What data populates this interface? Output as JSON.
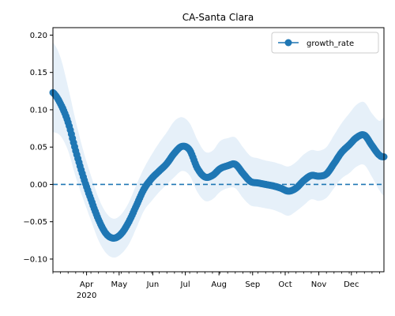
{
  "chart_data": {
    "type": "line",
    "title": "CA-Santa Clara",
    "xlabel": "",
    "ylabel": "",
    "x_axis": {
      "start": "2020-03-01",
      "end": "2020-12-31",
      "major_ticks": [
        {
          "date": "2020-04-01",
          "label": "Apr",
          "sublabel": "2020"
        },
        {
          "date": "2020-05-01",
          "label": "May",
          "sublabel": ""
        },
        {
          "date": "2020-06-01",
          "label": "Jun",
          "sublabel": ""
        },
        {
          "date": "2020-07-01",
          "label": "Jul",
          "sublabel": ""
        },
        {
          "date": "2020-08-01",
          "label": "Aug",
          "sublabel": ""
        },
        {
          "date": "2020-09-01",
          "label": "Sep",
          "sublabel": ""
        },
        {
          "date": "2020-10-01",
          "label": "Oct",
          "sublabel": ""
        },
        {
          "date": "2020-11-01",
          "label": "Nov",
          "sublabel": ""
        },
        {
          "date": "2020-12-01",
          "label": "Dec",
          "sublabel": ""
        }
      ],
      "minor_ticks": "weekly"
    },
    "ylim": [
      -0.117,
      0.21
    ],
    "yticks": [
      -0.1,
      -0.05,
      0.0,
      0.05,
      0.1,
      0.15,
      0.2
    ],
    "ytick_labels": [
      "−0.10",
      "−0.05",
      "0.00",
      "0.05",
      "0.10",
      "0.15",
      "0.20"
    ],
    "reference_line": {
      "y": 0.0,
      "style": "dashed"
    },
    "legend": {
      "position": "top-right",
      "entries": [
        "growth_rate"
      ]
    },
    "series": [
      {
        "name": "growth_rate",
        "color": "#1f77b4",
        "band_color": "#deebf7",
        "points": [
          {
            "x": "2020-03-01",
            "y": 0.123,
            "lo": 0.07,
            "hi": 0.19
          },
          {
            "x": "2020-03-08",
            "y": 0.108,
            "lo": 0.065,
            "hi": 0.17
          },
          {
            "x": "2020-03-15",
            "y": 0.083,
            "lo": 0.045,
            "hi": 0.13
          },
          {
            "x": "2020-03-22",
            "y": 0.045,
            "lo": 0.01,
            "hi": 0.085
          },
          {
            "x": "2020-03-29",
            "y": 0.01,
            "lo": -0.02,
            "hi": 0.045
          },
          {
            "x": "2020-04-05",
            "y": -0.02,
            "lo": -0.048,
            "hi": 0.012
          },
          {
            "x": "2020-04-12",
            "y": -0.047,
            "lo": -0.075,
            "hi": -0.018
          },
          {
            "x": "2020-04-19",
            "y": -0.066,
            "lo": -0.092,
            "hi": -0.038
          },
          {
            "x": "2020-04-26",
            "y": -0.072,
            "lo": -0.098,
            "hi": -0.046
          },
          {
            "x": "2020-05-03",
            "y": -0.066,
            "lo": -0.093,
            "hi": -0.04
          },
          {
            "x": "2020-05-10",
            "y": -0.05,
            "lo": -0.08,
            "hi": -0.024
          },
          {
            "x": "2020-05-17",
            "y": -0.028,
            "lo": -0.058,
            "hi": 0.0
          },
          {
            "x": "2020-05-24",
            "y": -0.006,
            "lo": -0.035,
            "hi": 0.022
          },
          {
            "x": "2020-05-31",
            "y": 0.008,
            "lo": -0.022,
            "hi": 0.04
          },
          {
            "x": "2020-06-07",
            "y": 0.018,
            "lo": -0.01,
            "hi": 0.056
          },
          {
            "x": "2020-06-14",
            "y": 0.028,
            "lo": 0.0,
            "hi": 0.07
          },
          {
            "x": "2020-06-21",
            "y": 0.042,
            "lo": 0.01,
            "hi": 0.085
          },
          {
            "x": "2020-06-28",
            "y": 0.051,
            "lo": 0.018,
            "hi": 0.09
          },
          {
            "x": "2020-07-05",
            "y": 0.046,
            "lo": 0.012,
            "hi": 0.082
          },
          {
            "x": "2020-07-12",
            "y": 0.022,
            "lo": -0.01,
            "hi": 0.06
          },
          {
            "x": "2020-07-19",
            "y": 0.01,
            "lo": -0.022,
            "hi": 0.044
          },
          {
            "x": "2020-07-26",
            "y": 0.012,
            "lo": -0.02,
            "hi": 0.045
          },
          {
            "x": "2020-08-02",
            "y": 0.021,
            "lo": -0.01,
            "hi": 0.058
          },
          {
            "x": "2020-08-09",
            "y": 0.025,
            "lo": -0.005,
            "hi": 0.062
          },
          {
            "x": "2020-08-16",
            "y": 0.027,
            "lo": -0.005,
            "hi": 0.063
          },
          {
            "x": "2020-08-23",
            "y": 0.015,
            "lo": -0.018,
            "hi": 0.05
          },
          {
            "x": "2020-08-30",
            "y": 0.004,
            "lo": -0.028,
            "hi": 0.038
          },
          {
            "x": "2020-09-06",
            "y": 0.002,
            "lo": -0.03,
            "hi": 0.035
          },
          {
            "x": "2020-09-13",
            "y": 0.0,
            "lo": -0.032,
            "hi": 0.032
          },
          {
            "x": "2020-09-20",
            "y": -0.002,
            "lo": -0.034,
            "hi": 0.03
          },
          {
            "x": "2020-09-27",
            "y": -0.005,
            "lo": -0.038,
            "hi": 0.027
          },
          {
            "x": "2020-10-04",
            "y": -0.009,
            "lo": -0.042,
            "hi": 0.024
          },
          {
            "x": "2020-10-11",
            "y": -0.005,
            "lo": -0.036,
            "hi": 0.03
          },
          {
            "x": "2020-10-18",
            "y": 0.005,
            "lo": -0.028,
            "hi": 0.04
          },
          {
            "x": "2020-10-25",
            "y": 0.012,
            "lo": -0.02,
            "hi": 0.046
          },
          {
            "x": "2020-11-01",
            "y": 0.011,
            "lo": -0.022,
            "hi": 0.045
          },
          {
            "x": "2020-11-08",
            "y": 0.014,
            "lo": -0.018,
            "hi": 0.05
          },
          {
            "x": "2020-11-15",
            "y": 0.028,
            "lo": -0.005,
            "hi": 0.066
          },
          {
            "x": "2020-11-22",
            "y": 0.043,
            "lo": 0.008,
            "hi": 0.082
          },
          {
            "x": "2020-11-29",
            "y": 0.053,
            "lo": 0.015,
            "hi": 0.095
          },
          {
            "x": "2020-12-06",
            "y": 0.063,
            "lo": 0.024,
            "hi": 0.107
          },
          {
            "x": "2020-12-13",
            "y": 0.066,
            "lo": 0.026,
            "hi": 0.11
          },
          {
            "x": "2020-12-20",
            "y": 0.052,
            "lo": 0.01,
            "hi": 0.095
          },
          {
            "x": "2020-12-27",
            "y": 0.039,
            "lo": -0.008,
            "hi": 0.085
          },
          {
            "x": "2020-12-31",
            "y": 0.037,
            "lo": -0.015,
            "hi": 0.09
          }
        ]
      }
    ]
  }
}
